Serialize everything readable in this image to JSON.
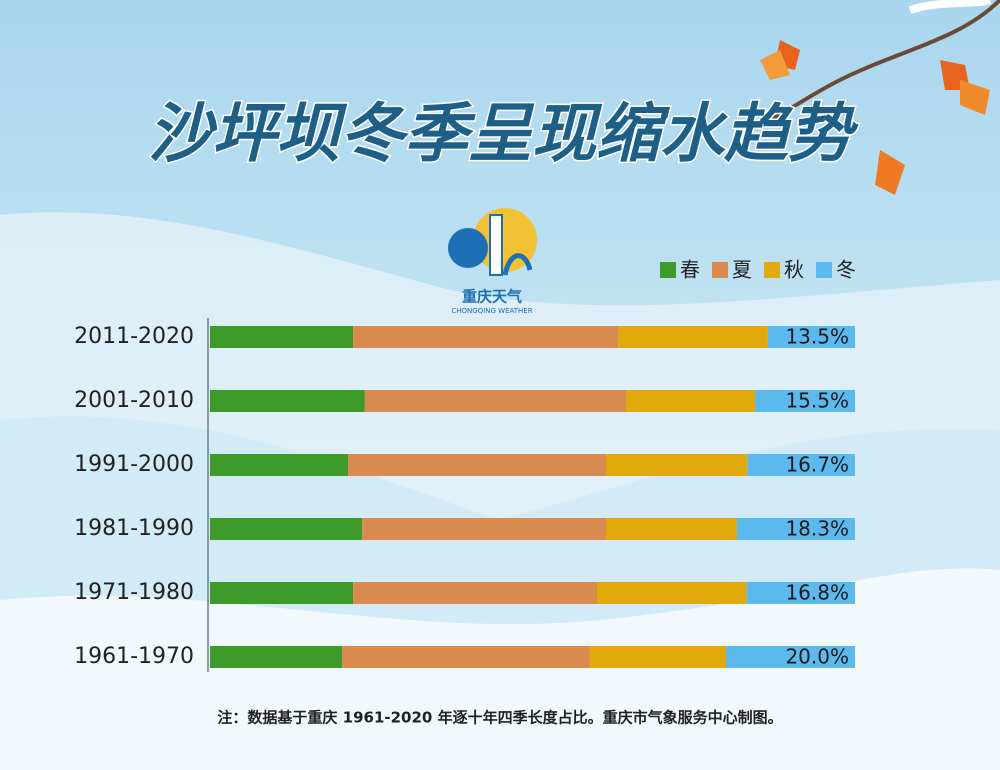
{
  "chart_data": {
    "type": "stacked-bar",
    "title": "沙坪坝冬季呈现缩水趋势",
    "logo_text": "重庆天气",
    "logo_subtext": "CHONGQING WEATHER",
    "note": "注：数据基于重庆 1961-2020 年逐十年四季长度占比。重庆市气象服务中心制图。",
    "categories": [
      "2011-2020",
      "2001-2010",
      "1991-2000",
      "1981-1990",
      "1971-1980",
      "1961-1970"
    ],
    "xlim": [
      0,
      100
    ],
    "series": [
      {
        "name": "春",
        "color": "#3f9a2c",
        "values": [
          22.2,
          24.0,
          21.4,
          23.6,
          22.2,
          20.5
        ]
      },
      {
        "name": "夏",
        "color": "#d98a4e",
        "values": [
          41.1,
          40.5,
          40.0,
          37.8,
          37.8,
          38.4
        ]
      },
      {
        "name": "秋",
        "color": "#e2a90a",
        "values": [
          23.2,
          20.0,
          21.9,
          20.3,
          23.2,
          21.1
        ]
      },
      {
        "name": "冬",
        "color": "#5cb9ee",
        "values": [
          13.5,
          15.5,
          16.7,
          18.3,
          16.8,
          20.0
        ],
        "value_labels": [
          "13.5%",
          "15.5%",
          "16.7%",
          "18.3%",
          "16.8%",
          "20.0%"
        ]
      }
    ]
  }
}
